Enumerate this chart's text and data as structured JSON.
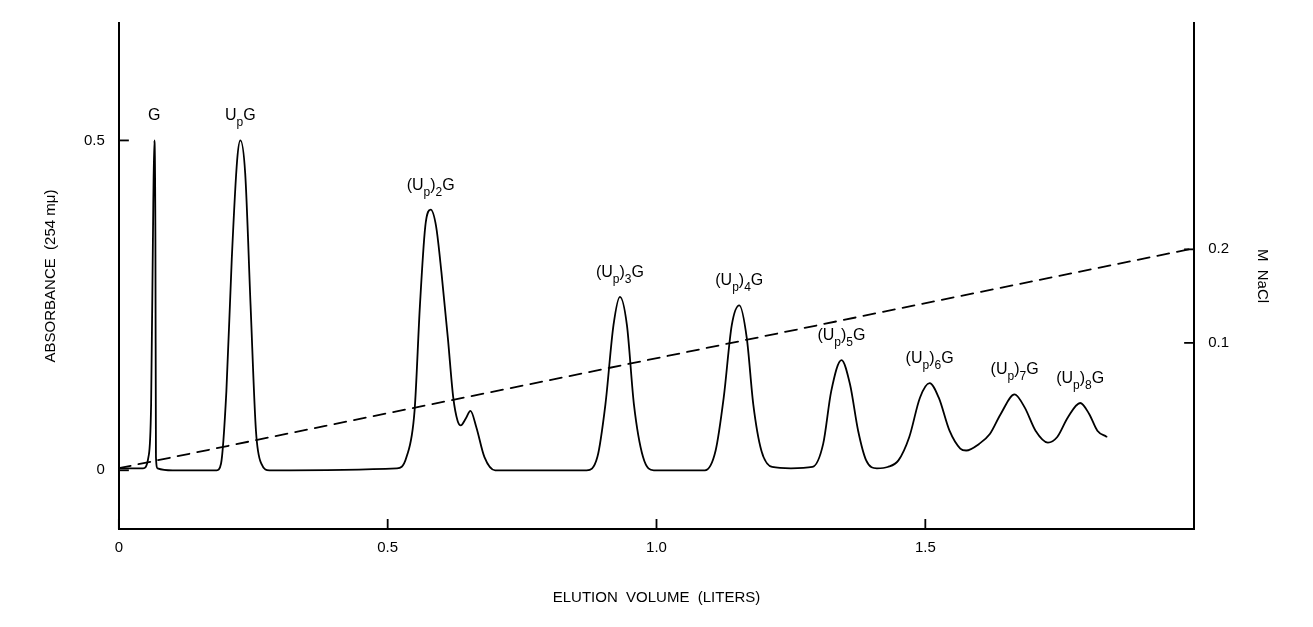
{
  "chart_data": {
    "type": "line",
    "xlabel": "ELUTION  VOLUME  (LITERS)",
    "ylabel": "ABSORBANCE  (254 mμ)",
    "y2label": "M  NaCl",
    "xlim": [
      0,
      2.0
    ],
    "xticks": [
      0,
      0.5,
      {
        "value": 1,
        "label": "1.0"
      },
      1.5
    ],
    "ylim": [
      -0.089,
      0.678
    ],
    "yticks": [
      0,
      0.5
    ],
    "y2lim": [
      -0.099,
      0.442
    ],
    "y2ticks": [
      0.1,
      0.2
    ],
    "marker": "none",
    "legend": false,
    "series": [
      {
        "color": "#000000",
        "line_style": "solid",
        "x": [
          0,
          0.045,
          0.055,
          0.06,
          0.064,
          0.066,
          0.068,
          0.069,
          0.072,
          0.1,
          0.182,
          0.19,
          0.2,
          0.21,
          0.22,
          0.226,
          0.235,
          0.245,
          0.255,
          0.265,
          0.28,
          0.517,
          0.535,
          0.55,
          0.56,
          0.57,
          0.58,
          0.59,
          0.6,
          0.612,
          0.622,
          0.63,
          0.636,
          0.645,
          0.654,
          0.665,
          0.68,
          0.7,
          0.87,
          0.89,
          0.905,
          0.92,
          0.932,
          0.945,
          0.958,
          0.975,
          0.995,
          1.09,
          1.11,
          1.125,
          1.14,
          1.154,
          1.168,
          1.18,
          1.195,
          1.215,
          1.25,
          1.29,
          1.31,
          1.325,
          1.344,
          1.36,
          1.375,
          1.39,
          1.41,
          1.43,
          1.45,
          1.47,
          1.49,
          1.508,
          1.525,
          1.545,
          1.565,
          1.576,
          1.6,
          1.62,
          1.64,
          1.666,
          1.685,
          1.705,
          1.728,
          1.745,
          1.765,
          1.788,
          1.805,
          1.82,
          1.837
        ],
        "values": [
          0.003,
          0.003,
          0.02,
          0.1,
          0.4,
          0.5,
          0.35,
          0.02,
          0.003,
          0,
          0,
          0.01,
          0.12,
          0.32,
          0.47,
          0.5,
          0.45,
          0.25,
          0.06,
          0.01,
          0,
          0.003,
          0.02,
          0.09,
          0.25,
          0.37,
          0.395,
          0.37,
          0.3,
          0.2,
          0.11,
          0.075,
          0.068,
          0.078,
          0.09,
          0.065,
          0.02,
          0,
          0,
          0.02,
          0.1,
          0.22,
          0.263,
          0.22,
          0.1,
          0.02,
          0,
          0,
          0.03,
          0.11,
          0.22,
          0.25,
          0.2,
          0.1,
          0.03,
          0.005,
          0.003,
          0.005,
          0.04,
          0.12,
          0.167,
          0.13,
          0.06,
          0.015,
          0.003,
          0.005,
          0.015,
          0.05,
          0.11,
          0.132,
          0.11,
          0.06,
          0.033,
          0.03,
          0.04,
          0.055,
          0.085,
          0.115,
          0.095,
          0.06,
          0.042,
          0.05,
          0.08,
          0.102,
          0.085,
          0.06,
          0.051
        ]
      },
      {
        "color": "#000000",
        "line_style": "dashed",
        "axis": "y2",
        "x": [
          0,
          1.99
        ],
        "values": [
          -0.034,
          0.2
        ]
      }
    ],
    "annotations": [
      {
        "text": "G",
        "x": 0.066,
        "y": 0.5
      },
      {
        "text": "U$_{p}$G",
        "x": 0.226,
        "y": 0.5
      },
      {
        "text": "(U$_{p}$)$_{2}$G",
        "x": 0.58,
        "y": 0.395
      },
      {
        "text": "(U$_{p}$)$_{3}$G",
        "x": 0.932,
        "y": 0.263
      },
      {
        "text": "(U$_{p}$)$_{4}$G",
        "x": 1.154,
        "y": 0.25
      },
      {
        "text": "(U$_{p}$)$_{5}$G",
        "x": 1.344,
        "y": 0.167
      },
      {
        "text": "(U$_{p}$)$_{6}$G",
        "x": 1.508,
        "y": 0.132
      },
      {
        "text": "(U$_{p}$)$_{7}$G",
        "x": 1.666,
        "y": 0.115
      },
      {
        "text": "(U$_{p}$)$_{8}$G",
        "x": 1.788,
        "y": 0.102
      }
    ]
  }
}
